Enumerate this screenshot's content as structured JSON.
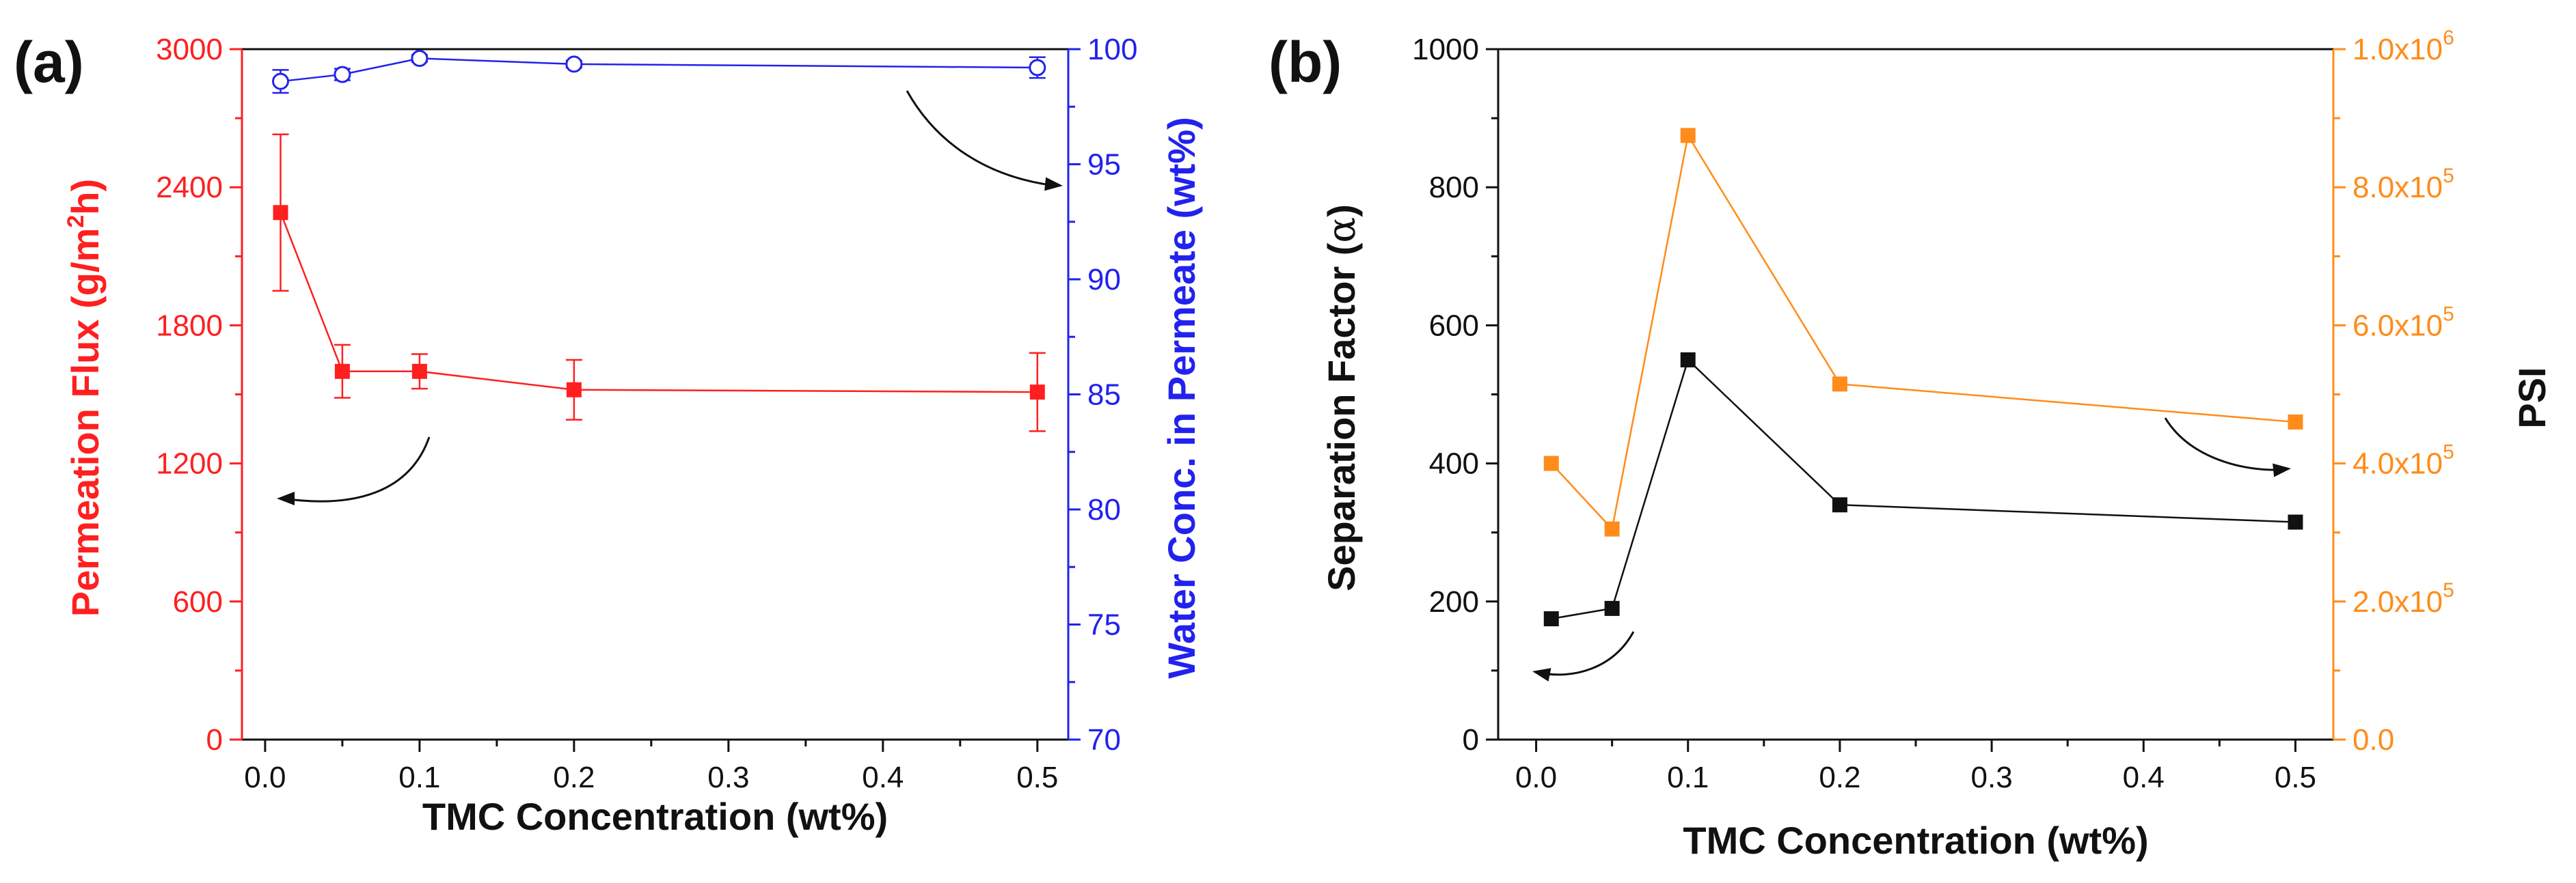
{
  "chart_data": [
    {
      "panel_label": "(a)",
      "type": "line",
      "xlabel": "TMC Concentration (wt%)",
      "xlim": [
        -0.015,
        0.52
      ],
      "xticks": [
        "0.0",
        "0.1",
        "0.2",
        "0.3",
        "0.4",
        "0.5"
      ],
      "y_left": {
        "label_pre": "Permeation Flux (g/m",
        "label_sup": "2",
        "label_post": "h)",
        "ylim": [
          0,
          3000
        ],
        "ticks": [
          "0",
          "600",
          "1200",
          "1800",
          "2400",
          "3000"
        ],
        "color": "#ff1f1f"
      },
      "y_right": {
        "label": "Water Conc. in Permeate (wt%)",
        "ylim": [
          70,
          100
        ],
        "ticks": [
          "70",
          "75",
          "80",
          "85",
          "90",
          "95",
          "100"
        ],
        "color": "#2222ee"
      },
      "series": [
        {
          "axis": "left",
          "marker": "filled-square",
          "color": "#ff1f1f",
          "x": [
            0.01,
            0.05,
            0.1,
            0.2,
            0.5
          ],
          "y": [
            2290,
            1600,
            1600,
            1520,
            1510
          ],
          "err": [
            340,
            115,
            75,
            130,
            170
          ]
        },
        {
          "axis": "right",
          "marker": "open-circle",
          "color": "#2222ee",
          "x": [
            0.01,
            0.05,
            0.1,
            0.2,
            0.5
          ],
          "y": [
            98.6,
            98.9,
            99.6,
            99.35,
            99.2
          ],
          "err": [
            0.5,
            0.25,
            0.15,
            0.15,
            0.45
          ]
        }
      ]
    },
    {
      "panel_label": "(b)",
      "type": "line",
      "xlabel": "TMC Concentration (wt%)",
      "xlim": [
        -0.025,
        0.525
      ],
      "xticks": [
        "0.0",
        "0.1",
        "0.2",
        "0.3",
        "0.4",
        "0.5"
      ],
      "y_left": {
        "label": "Separation Factor (",
        "label_symbol": "α",
        "label_post": ")",
        "ylim": [
          0,
          1000
        ],
        "ticks": [
          "0",
          "200",
          "400",
          "600",
          "800",
          "1000"
        ],
        "color": "#111111"
      },
      "y_right": {
        "label": "PSI",
        "ylim": [
          0,
          1000000
        ],
        "ticks_mantissa": [
          "0.0",
          "2.0x10",
          "4.0x10",
          "6.0x10",
          "8.0x10",
          "1.0x10"
        ],
        "ticks_exponent": [
          "",
          "5",
          "5",
          "5",
          "5",
          "6"
        ],
        "color": "#ff8c1a"
      },
      "series": [
        {
          "axis": "left",
          "marker": "filled-square",
          "color": "#111111",
          "x": [
            0.01,
            0.05,
            0.1,
            0.2,
            0.5
          ],
          "y": [
            175,
            190,
            550,
            340,
            315
          ]
        },
        {
          "axis": "right",
          "marker": "filled-square",
          "color": "#ff8c1a",
          "x": [
            0.01,
            0.05,
            0.1,
            0.2,
            0.5
          ],
          "y": [
            400000,
            305000,
            875000,
            515000,
            460000
          ]
        }
      ]
    }
  ]
}
